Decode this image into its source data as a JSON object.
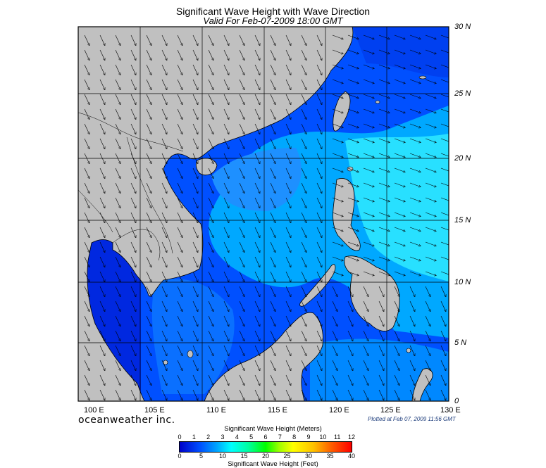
{
  "title": "Significant Wave Height with Wave Direction",
  "subtitle": "Valid For Feb-07-2009 18:00 GMT",
  "lat_labels": [
    "30 N",
    "25 N",
    "20 N",
    "15 N",
    "10 N",
    "5 N",
    "0"
  ],
  "lon_labels": [
    "100 E",
    "105 E",
    "110 E",
    "115 E",
    "120 E",
    "125 E",
    "130 E"
  ],
  "brand": "oceanweather inc.",
  "plotted": "Plotted at Feb 07, 2009 11:56 GMT",
  "legend": {
    "meters_title": "Significant Wave Height (Meters)",
    "feet_title": "Significant Wave Height (Feet)",
    "meter_ticks": [
      "0",
      "1",
      "2",
      "3",
      "4",
      "5",
      "6",
      "7",
      "8",
      "9",
      "10",
      "11",
      "12"
    ],
    "feet_ticks": [
      "0",
      "5",
      "10",
      "15",
      "20",
      "25",
      "30",
      "35",
      "40"
    ]
  },
  "colors": {
    "land": "#c0c0c0",
    "deep_blue": "#0000c8",
    "blue": "#0050ff",
    "light_blue": "#00a8ff",
    "cyan": "#00ffff"
  }
}
